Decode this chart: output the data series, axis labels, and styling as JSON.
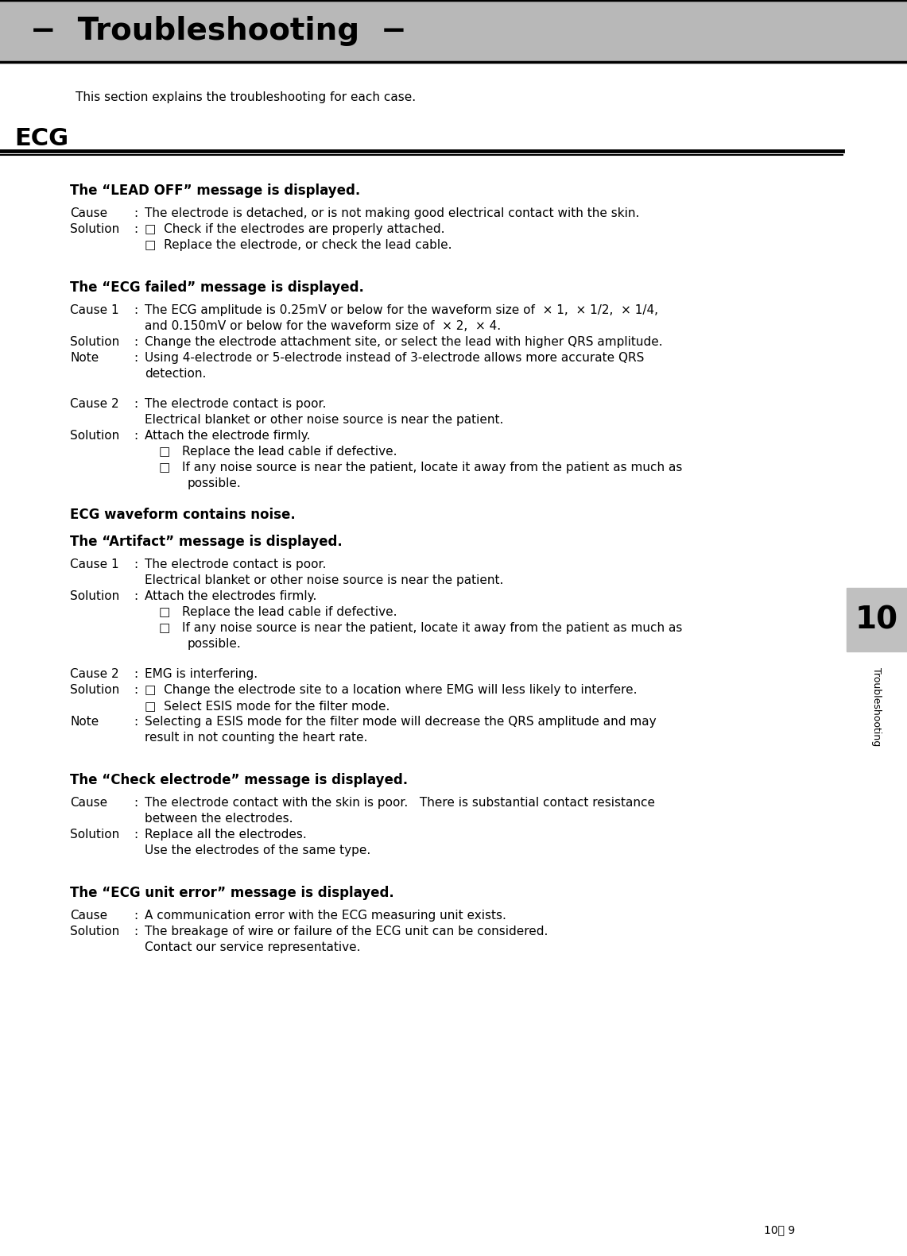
{
  "page_bg": "#ffffff",
  "header_bg": "#b8b8b8",
  "header_text": "−  Troubleshooting  −",
  "header_text_color": "#000000",
  "header_font_size": 26,
  "section_intro": "This section explains the troubleshooting for each case.",
  "section_label": "ECG",
  "page_number": "10－ 9",
  "sidebar_number": "10",
  "sidebar_bg": "#c0c0c0",
  "sidebar_text": "Troubleshooting",
  "content_blocks": [
    {
      "type": "heading",
      "text": "The “LEAD OFF” message is displayed."
    },
    {
      "type": "body",
      "label": "Cause",
      "colon": true,
      "text": "The electrode is detached, or is not making good electrical contact with the skin."
    },
    {
      "type": "body",
      "label": "Solution",
      "colon": true,
      "text": "□  Check if the electrodes are properly attached."
    },
    {
      "type": "continuation",
      "text": "□  Replace the electrode, or check the lead cable."
    },
    {
      "type": "spacer"
    },
    {
      "type": "heading",
      "text": "The “ECG failed” message is displayed."
    },
    {
      "type": "body",
      "label": "Cause 1",
      "colon": true,
      "text": "The ECG amplitude is 0.25mV or below for the waveform size of  × 1,  × 1/2,  × 1/4,"
    },
    {
      "type": "continuation",
      "text": "and 0.150mV or below for the waveform size of  × 2,  × 4."
    },
    {
      "type": "body",
      "label": "Solution",
      "colon": true,
      "text": "Change the electrode attachment site, or select the lead with higher QRS amplitude."
    },
    {
      "type": "body",
      "label": "Note",
      "colon": true,
      "text": "Using 4-electrode or 5-electrode instead of 3-electrode allows more accurate QRS"
    },
    {
      "type": "continuation",
      "text": "detection."
    },
    {
      "type": "spacer"
    },
    {
      "type": "body",
      "label": "Cause 2",
      "colon": true,
      "text": "The electrode contact is poor."
    },
    {
      "type": "continuation",
      "text": "Electrical blanket or other noise source is near the patient."
    },
    {
      "type": "body",
      "label": "Solution",
      "colon": true,
      "text": "Attach the electrode firmly."
    },
    {
      "type": "bullet",
      "text": "□   Replace the lead cable if defective."
    },
    {
      "type": "bullet",
      "text": "□   If any noise source is near the patient, locate it away from the patient as much as"
    },
    {
      "type": "bullet_cont",
      "text": "possible."
    },
    {
      "type": "spacer"
    },
    {
      "type": "heading2",
      "text": "ECG waveform contains noise."
    },
    {
      "type": "heading",
      "text": "The “Artifact” message is displayed."
    },
    {
      "type": "body",
      "label": "Cause 1",
      "colon": true,
      "text": "The electrode contact is poor."
    },
    {
      "type": "continuation",
      "text": "Electrical blanket or other noise source is near the patient."
    },
    {
      "type": "body",
      "label": "Solution",
      "colon": true,
      "text": "Attach the electrodes firmly."
    },
    {
      "type": "bullet",
      "text": "□   Replace the lead cable if defective."
    },
    {
      "type": "bullet",
      "text": "□   If any noise source is near the patient, locate it away from the patient as much as"
    },
    {
      "type": "bullet_cont",
      "text": "possible."
    },
    {
      "type": "spacer"
    },
    {
      "type": "body",
      "label": "Cause 2",
      "colon": true,
      "text": "EMG is interfering."
    },
    {
      "type": "body",
      "label": "Solution",
      "colon": true,
      "text": "□  Change the electrode site to a location where EMG will less likely to interfere."
    },
    {
      "type": "continuation",
      "text": "□  Select ESIS mode for the filter mode."
    },
    {
      "type": "body",
      "label": "Note",
      "colon": true,
      "text": "Selecting a ESIS mode for the filter mode will decrease the QRS amplitude and may"
    },
    {
      "type": "continuation",
      "text": "result in not counting the heart rate."
    },
    {
      "type": "spacer"
    },
    {
      "type": "heading",
      "text": "The “Check electrode” message is displayed."
    },
    {
      "type": "body",
      "label": "Cause",
      "colon": true,
      "text": "The electrode contact with the skin is poor.   There is substantial contact resistance"
    },
    {
      "type": "continuation",
      "text": "between the electrodes."
    },
    {
      "type": "body",
      "label": "Solution",
      "colon": true,
      "text": "Replace all the electrodes."
    },
    {
      "type": "continuation",
      "text": "Use the electrodes of the same type."
    },
    {
      "type": "spacer"
    },
    {
      "type": "heading",
      "text": "The “ECG unit error” message is displayed."
    },
    {
      "type": "body",
      "label": "Cause",
      "colon": true,
      "text": "A communication error with the ECG measuring unit exists."
    },
    {
      "type": "body",
      "label": "Solution",
      "colon": true,
      "text": "The breakage of wire or failure of the ECG unit can be considered."
    },
    {
      "type": "continuation",
      "text": "Contact our service representative."
    }
  ]
}
